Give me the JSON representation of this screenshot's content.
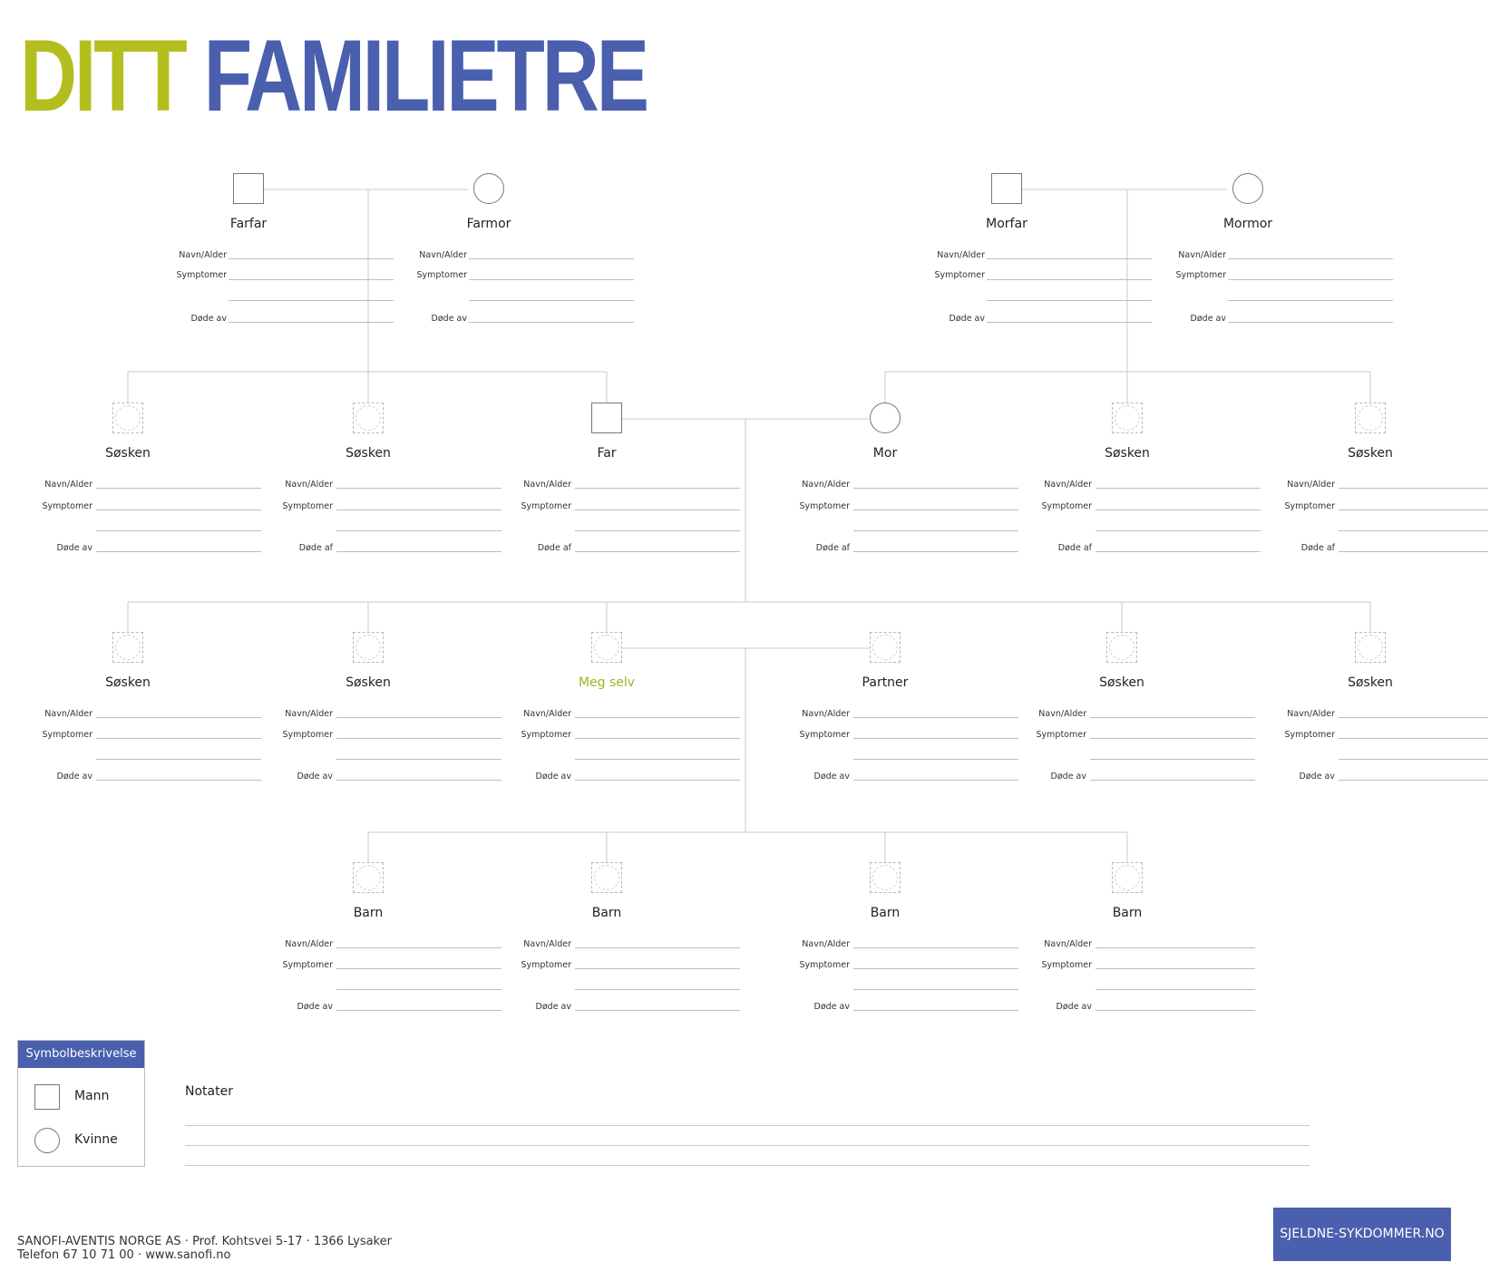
{
  "header": {
    "title_word1": "DITT",
    "title_word2": "FAMILIETRE"
  },
  "fields": {
    "name_age": "Navn/Alder",
    "symptoms": "Symptomer",
    "died_of": "Døde av",
    "died_of_alt": "Døde af"
  },
  "generations": {
    "grandparents": [
      {
        "name": "Farfar",
        "gender": "male"
      },
      {
        "name": "Farmor",
        "gender": "female"
      },
      {
        "name": "Morfar",
        "gender": "male"
      },
      {
        "name": "Mormor",
        "gender": "female"
      }
    ],
    "parents": [
      {
        "name": "Søsken",
        "gender": "unknown",
        "died_label": "Døde av"
      },
      {
        "name": "Søsken",
        "gender": "unknown",
        "died_label": "Døde af"
      },
      {
        "name": "Far",
        "gender": "male",
        "died_label": "Døde af"
      },
      {
        "name": "Mor",
        "gender": "female",
        "died_label": "Døde af"
      },
      {
        "name": "Søsken",
        "gender": "unknown",
        "died_label": "Døde af"
      },
      {
        "name": "Søsken",
        "gender": "unknown",
        "died_label": "Døde af"
      }
    ],
    "self_gen": [
      {
        "name": "Søsken",
        "gender": "unknown"
      },
      {
        "name": "Søsken",
        "gender": "unknown"
      },
      {
        "name": "Meg selv",
        "gender": "unknown",
        "highlight": true
      },
      {
        "name": "Partner",
        "gender": "unknown"
      },
      {
        "name": "Søsken",
        "gender": "unknown"
      },
      {
        "name": "Søsken",
        "gender": "unknown"
      }
    ],
    "children": [
      {
        "name": "Barn",
        "gender": "unknown"
      },
      {
        "name": "Barn",
        "gender": "unknown"
      },
      {
        "name": "Barn",
        "gender": "unknown"
      },
      {
        "name": "Barn",
        "gender": "unknown"
      }
    ]
  },
  "legend": {
    "title": "Symbolbeskrivelse",
    "items": [
      {
        "symbol": "square",
        "label": "Mann"
      },
      {
        "symbol": "circle",
        "label": "Kvinne"
      }
    ]
  },
  "notes": {
    "label": "Notater"
  },
  "footer": {
    "line1": "SANOFI-AVENTIS NORGE AS · Prof. Kohtsvei 5-17 · 1366 Lysaker",
    "line2": "Telefon 67 10 71 00 · www.sanofi.no"
  },
  "site_button": "SJELDNE-SYKDOMMER.NO",
  "colors": {
    "green": "#b4be1f",
    "blue": "#4a5fae",
    "line": "#c8c8c8"
  }
}
